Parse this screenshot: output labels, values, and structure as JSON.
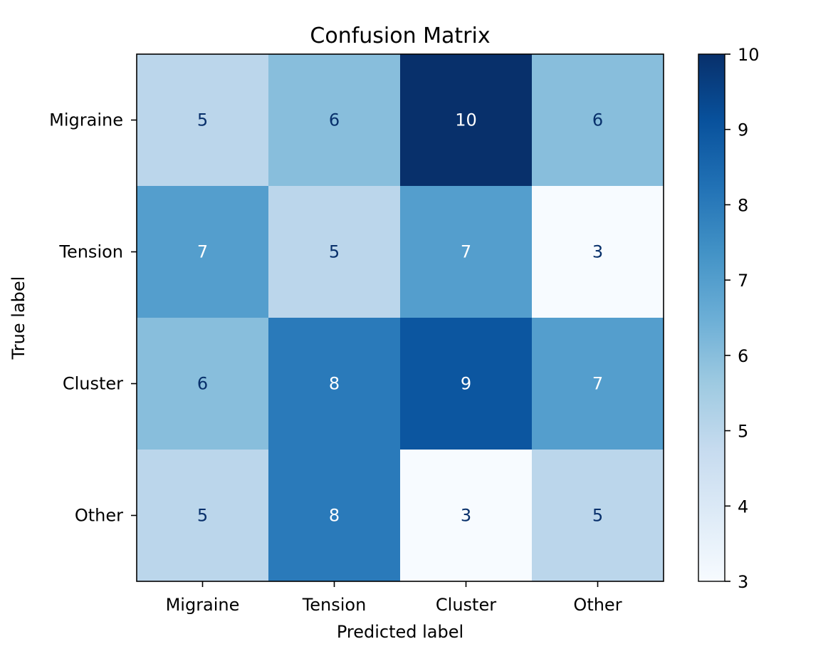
{
  "chart_data": {
    "type": "heatmap",
    "title": "Confusion Matrix",
    "xlabel": "Predicted label",
    "ylabel": "True label",
    "x_categories": [
      "Migraine",
      "Tension",
      "Cluster",
      "Other"
    ],
    "y_categories": [
      "Migraine",
      "Tension",
      "Cluster",
      "Other"
    ],
    "values": [
      [
        5,
        6,
        10,
        6
      ],
      [
        7,
        5,
        7,
        3
      ],
      [
        6,
        8,
        9,
        7
      ],
      [
        5,
        8,
        3,
        5
      ]
    ],
    "colormap": "Blues",
    "colorbar": {
      "range": [
        3,
        10
      ],
      "ticks": [
        3,
        4,
        5,
        6,
        7,
        8,
        9,
        10
      ]
    },
    "colors": {
      "low": "#f7fbff",
      "high": "#08306b",
      "text_dark": "#08306b",
      "text_light": "#ffffff"
    }
  }
}
